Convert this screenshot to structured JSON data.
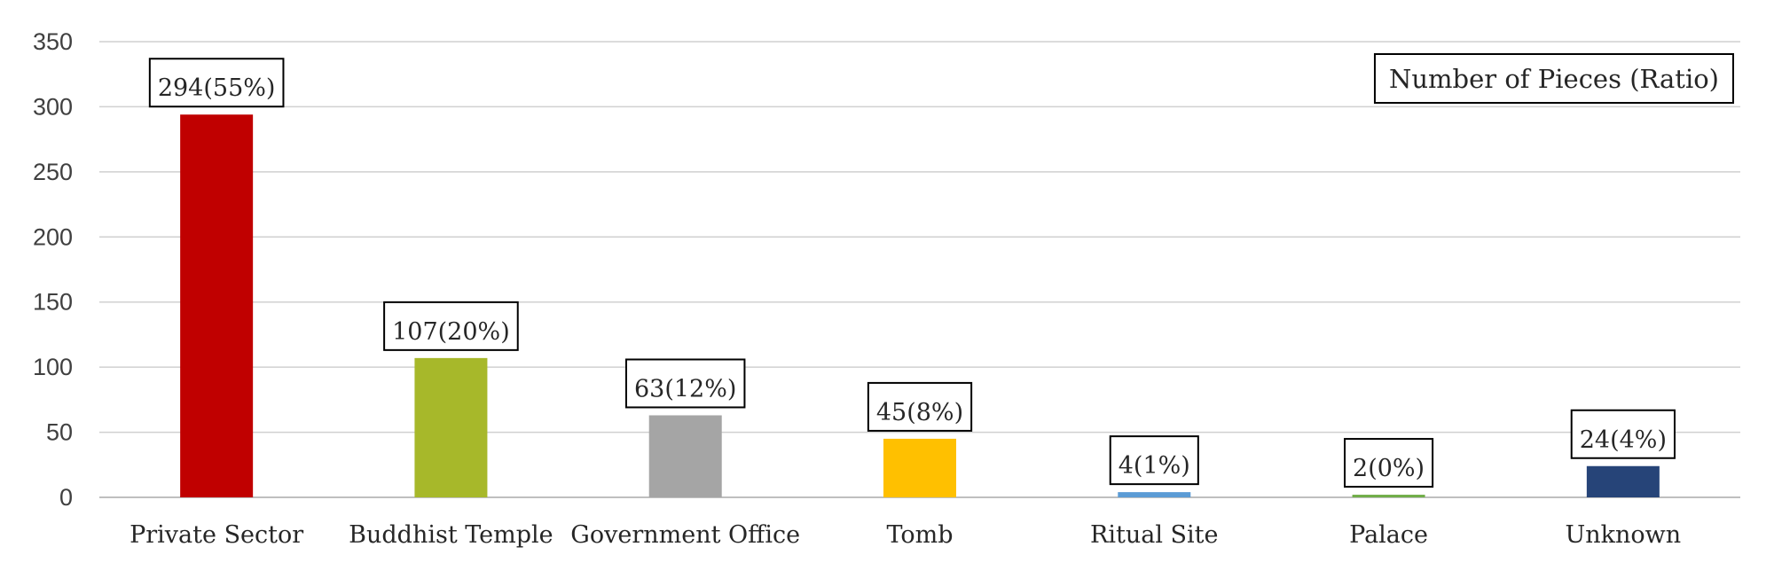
{
  "chart_data": {
    "type": "bar",
    "categories": [
      "Private Sector",
      "Buddhist Temple",
      "Government Office",
      "Tomb",
      "Ritual Site",
      "Palace",
      "Unknown"
    ],
    "values": [
      294,
      107,
      63,
      45,
      4,
      2,
      24
    ],
    "data_labels": [
      "294(55%)",
      "107(20%)",
      "63(12%)",
      "45(8%)",
      "4(1%)",
      "2(0%)",
      "24(4%)"
    ],
    "bar_colors": [
      "#c00000",
      "#a7b82a",
      "#a5a5a5",
      "#ffc000",
      "#5b9bd5",
      "#70ad47",
      "#264478"
    ],
    "y_ticks": [
      "0",
      "50",
      "100",
      "150",
      "200",
      "250",
      "300",
      "350"
    ],
    "ylim": [
      0,
      350
    ],
    "grid": true,
    "legend_text": "Number of Pieces (Ratio)",
    "legend_position": "top-right"
  }
}
